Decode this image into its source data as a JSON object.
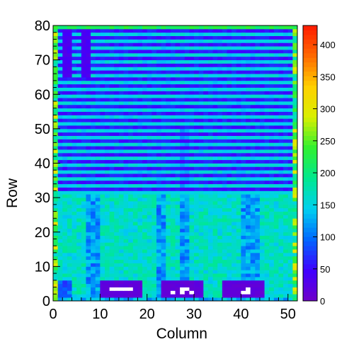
{
  "chart_data": {
    "type": "heatmap",
    "title": "",
    "xlabel": "Column",
    "ylabel": "Row",
    "xlim": [
      0,
      52
    ],
    "ylim": [
      0,
      80
    ],
    "xticks": [
      0,
      10,
      20,
      30,
      40,
      50
    ],
    "yticks": [
      0,
      10,
      20,
      30,
      40,
      50,
      60,
      70,
      80
    ],
    "nx": 52,
    "ny": 80,
    "zlim": [
      0,
      430
    ],
    "colorbar_ticks": [
      0,
      50,
      100,
      150,
      200,
      250,
      300,
      350,
      400
    ],
    "grid": false,
    "colormap": [
      "#7000c8",
      "#4000ff",
      "#0066ff",
      "#00d0f0",
      "#00e890",
      "#30f030",
      "#d8f000",
      "#ffd000",
      "#ff6a00",
      "#ff1a00"
    ],
    "border_value": 230,
    "region_values": {
      "upper_band_low": 45,
      "upper_band_high": 150,
      "upper_band_pattern": "horizontal stripes, alternating rows",
      "lower_region_base": 165,
      "lower_region_pattern": "speckled with vertical streaks near columns 7-10, 22-24, 27-28, 40-43",
      "dead_blocks": [
        {
          "cols": [
            10,
            18
          ],
          "rows": [
            1,
            5
          ],
          "value": 8
        },
        {
          "cols": [
            23,
            31
          ],
          "rows": [
            1,
            5
          ],
          "value": 8
        },
        {
          "cols": [
            36,
            44
          ],
          "rows": [
            1,
            5
          ],
          "value": 8
        }
      ],
      "empty_cells_in_dead_blocks": "white (zero)"
    }
  },
  "colorbar": {
    "labels": [
      "0",
      "50",
      "100",
      "150",
      "200",
      "250",
      "300",
      "350",
      "400"
    ]
  },
  "axes": {
    "x_tick_labels": [
      "0",
      "10",
      "20",
      "30",
      "40",
      "50"
    ],
    "y_tick_labels": [
      "0",
      "10",
      "20",
      "30",
      "40",
      "50",
      "60",
      "70",
      "80"
    ]
  }
}
